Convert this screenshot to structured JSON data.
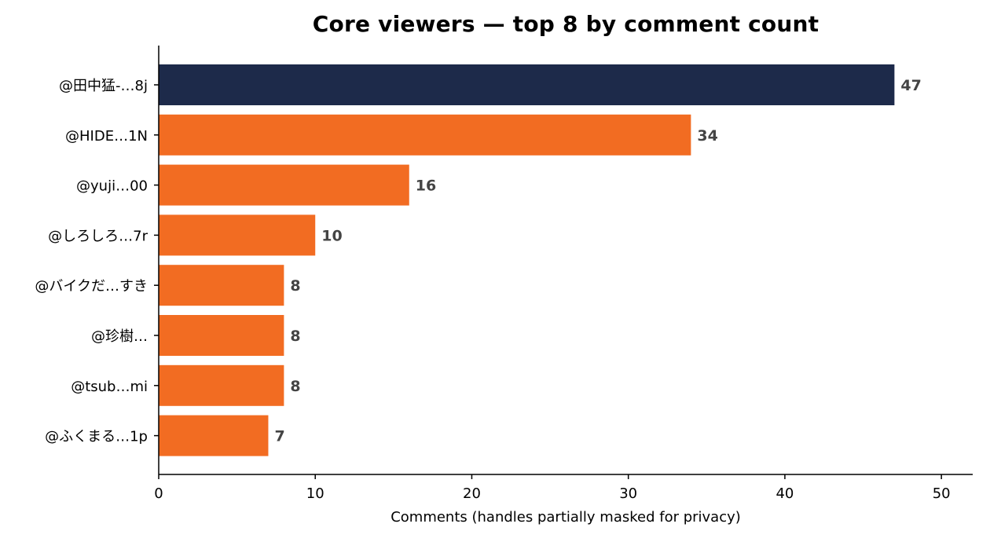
{
  "chart_data": {
    "type": "bar",
    "orientation": "horizontal",
    "title": "Core viewers — top 8 by comment count",
    "xlabel": "Comments (handles partially masked for privacy)",
    "ylabel": "",
    "xlim": [
      0,
      52
    ],
    "xticks": [
      0,
      10,
      20,
      30,
      40,
      50
    ],
    "grid": false,
    "categories": [
      "@田中猛-…8j",
      "@HIDE…1N",
      "@yuji…00",
      "@しろしろ…7r",
      "@バイクだ…すき",
      "@珍樹…",
      "@tsub…mi",
      "@ふくまる…1p"
    ],
    "values": [
      47,
      34,
      16,
      10,
      8,
      8,
      8,
      7
    ],
    "colors": {
      "highlight": "#1d2a4a",
      "bar": "#f26c22",
      "value_label": "#444444",
      "axis": "#000000"
    },
    "highlight_index": 0
  }
}
